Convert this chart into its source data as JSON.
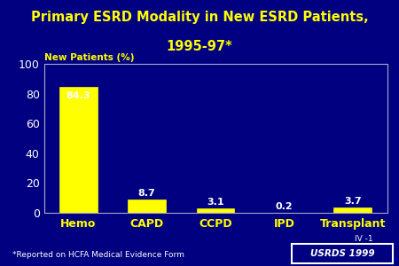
{
  "title_line1": "Primary ESRD Modality in New ESRD Patients,",
  "title_line2": "1995-97*",
  "categories": [
    "Hemo",
    "CAPD",
    "CCPD",
    "IPD",
    "Transplant"
  ],
  "values": [
    84.3,
    8.7,
    3.1,
    0.2,
    3.7
  ],
  "bar_color": "#FFFF00",
  "background_color": "#000080",
  "plot_bg_color": "#000080",
  "title_color": "#FFFF00",
  "label_color": "#FFFF00",
  "tick_color": "#FFFFFF",
  "axis_label": "New Patients (%)",
  "ylim": [
    0,
    100
  ],
  "yticks": [
    0,
    20,
    40,
    60,
    80,
    100
  ],
  "footnote": "*Reported on HCFA Medical Evidence Form",
  "watermark_line1": "IV -1",
  "watermark_line2": "USRDS 1999",
  "value_label_color": "#FFFFFF",
  "bar_edge_color": "#FFFF00",
  "spine_color": "#AAAACC"
}
